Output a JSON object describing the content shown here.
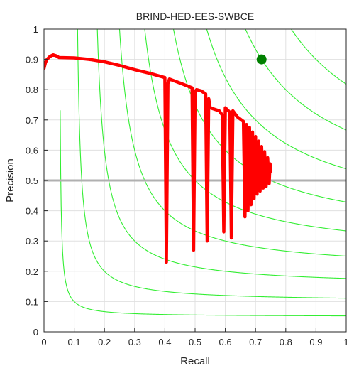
{
  "chart_data": {
    "type": "line",
    "title": "BRIND-HED-EES-SWBCE",
    "xlabel": "Recall",
    "ylabel": "Precision",
    "xlim": [
      0,
      1
    ],
    "ylim": [
      0,
      1
    ],
    "x_ticks": [
      "0",
      "0.1",
      "0.2",
      "0.3",
      "0.4",
      "0.5",
      "0.6",
      "0.7",
      "0.8",
      "0.9",
      "1"
    ],
    "y_ticks": [
      "0",
      "0.1",
      "0.2",
      "0.3",
      "0.4",
      "0.5",
      "0.6",
      "0.7",
      "0.8",
      "0.9",
      "1"
    ],
    "grid": true,
    "colors": {
      "pr_curve": "#ff0000",
      "iso_f": "#33ee33",
      "baseline": "#b0b0b0",
      "best_point": "#008000",
      "grid": "#e0e0e0",
      "axes": "#262626"
    },
    "iso_f_values": [
      0.1,
      0.2,
      0.3,
      0.4,
      0.5,
      0.6,
      0.7,
      0.8,
      0.9
    ],
    "baseline_precision": 0.5,
    "best_point": {
      "recall": 0.72,
      "precision": 0.9
    },
    "series": [
      {
        "points": [
          [
            0.0,
            0.87
          ],
          [
            0.005,
            0.89
          ],
          [
            0.01,
            0.9
          ],
          [
            0.02,
            0.91
          ],
          [
            0.03,
            0.915
          ],
          [
            0.04,
            0.912
          ],
          [
            0.05,
            0.906
          ],
          [
            0.1,
            0.905
          ],
          [
            0.15,
            0.9
          ],
          [
            0.2,
            0.892
          ],
          [
            0.25,
            0.88
          ],
          [
            0.3,
            0.866
          ],
          [
            0.35,
            0.854
          ],
          [
            0.4,
            0.84
          ],
          [
            0.405,
            0.23
          ],
          [
            0.41,
            0.82
          ],
          [
            0.415,
            0.835
          ],
          [
            0.45,
            0.822
          ],
          [
            0.49,
            0.806
          ],
          [
            0.495,
            0.27
          ],
          [
            0.5,
            0.795
          ],
          [
            0.505,
            0.8
          ],
          [
            0.52,
            0.796
          ],
          [
            0.535,
            0.786
          ],
          [
            0.54,
            0.3
          ],
          [
            0.545,
            0.77
          ],
          [
            0.55,
            0.74
          ],
          [
            0.58,
            0.73
          ],
          [
            0.59,
            0.716
          ],
          [
            0.595,
            0.33
          ],
          [
            0.6,
            0.74
          ],
          [
            0.605,
            0.735
          ],
          [
            0.615,
            0.725
          ],
          [
            0.62,
            0.31
          ],
          [
            0.625,
            0.73
          ],
          [
            0.64,
            0.71
          ],
          [
            0.66,
            0.695
          ],
          [
            0.665,
            0.38
          ],
          [
            0.67,
            0.685
          ],
          [
            0.675,
            0.4
          ],
          [
            0.68,
            0.675
          ],
          [
            0.685,
            0.42
          ],
          [
            0.69,
            0.66
          ],
          [
            0.695,
            0.44
          ],
          [
            0.7,
            0.645
          ],
          [
            0.705,
            0.455
          ],
          [
            0.71,
            0.63
          ],
          [
            0.715,
            0.465
          ],
          [
            0.72,
            0.612
          ],
          [
            0.725,
            0.475
          ],
          [
            0.73,
            0.595
          ],
          [
            0.735,
            0.48
          ],
          [
            0.74,
            0.575
          ],
          [
            0.745,
            0.49
          ],
          [
            0.748,
            0.555
          ],
          [
            0.75,
            0.53
          ]
        ]
      }
    ]
  }
}
